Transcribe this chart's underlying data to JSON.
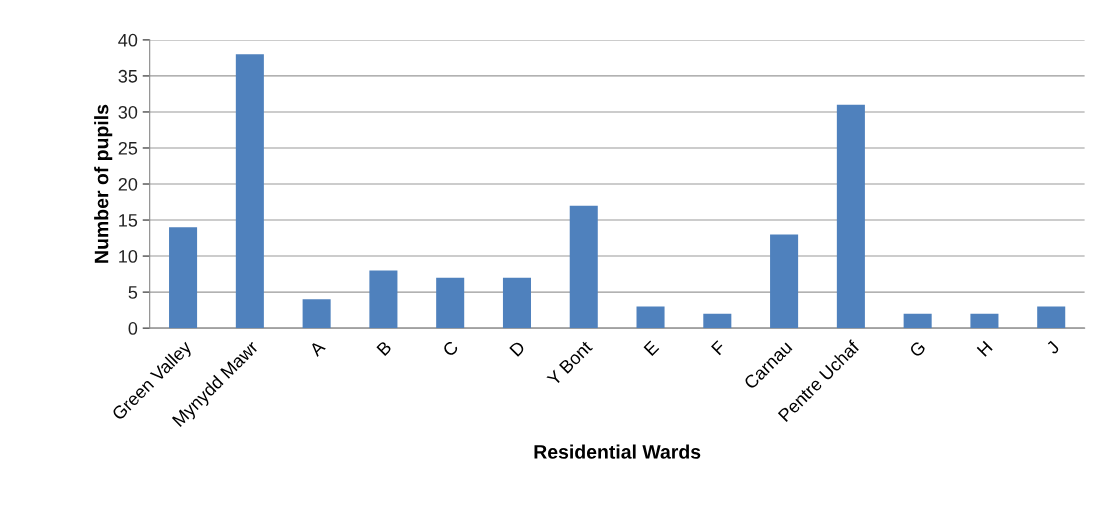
{
  "chart_data": {
    "type": "bar",
    "xlabel": "Residential Wards",
    "ylabel": "Number of pupils",
    "categories": [
      "Green Valley",
      "Mynydd Mawr",
      "A",
      "B",
      "C",
      "D",
      "Y Bont",
      "E",
      "F",
      "Carnau",
      "Pentre Uchaf",
      "G",
      "H",
      "J"
    ],
    "values": [
      14,
      38,
      4,
      8,
      7,
      7,
      17,
      3,
      2,
      13,
      31,
      2,
      2,
      3
    ],
    "color": "#4f81bd",
    "ylim": [
      0,
      40
    ],
    "yticks": [
      0,
      5,
      10,
      15,
      20,
      25,
      30,
      35,
      40
    ],
    "grid": "y",
    "legend": false
  }
}
